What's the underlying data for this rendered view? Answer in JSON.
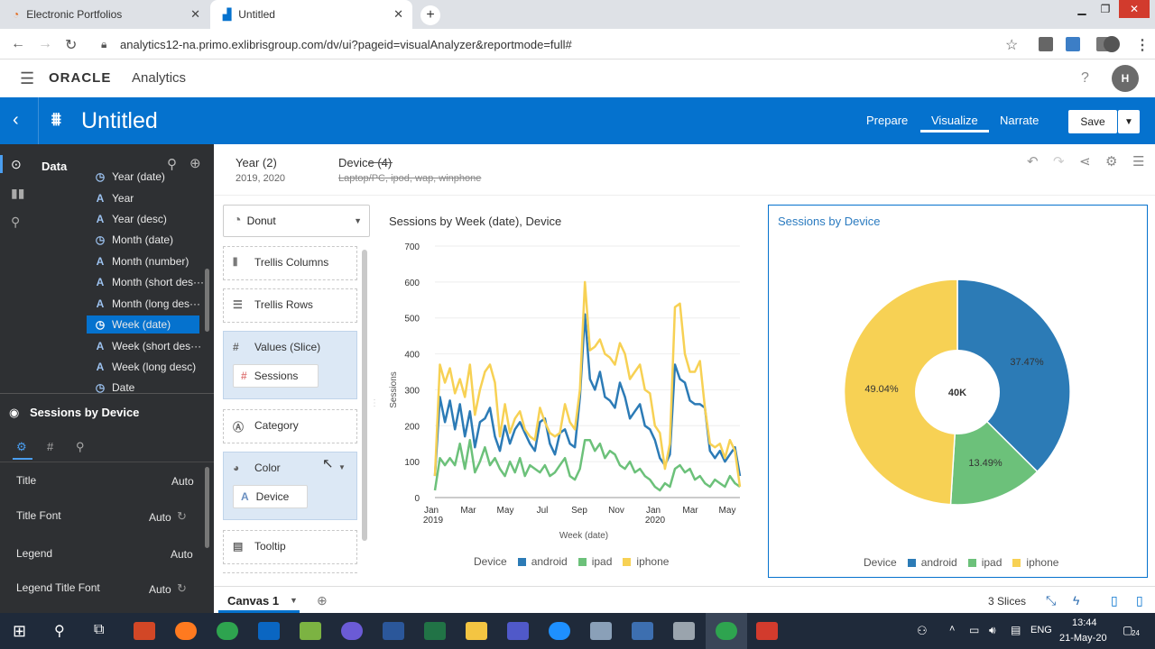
{
  "browser": {
    "tabs": [
      {
        "title": "Electronic Portfolios"
      },
      {
        "title": "Untitled"
      }
    ],
    "url": "analytics12-na.primo.exlibrisgroup.com/dv/ui?pageid=visualAnalyzer&reportmode=full#"
  },
  "app": {
    "brand": "ORACLE",
    "product": "Analytics",
    "help": "?",
    "avatar": "H"
  },
  "project": {
    "title": "Untitled",
    "nav": [
      "Prepare",
      "Visualize",
      "Narrate"
    ],
    "active_nav": "Visualize",
    "save_label": "Save"
  },
  "data_panel": {
    "label": "Data",
    "fields": [
      {
        "icon": "clock",
        "label": "Year (date)"
      },
      {
        "icon": "A",
        "label": "Year"
      },
      {
        "icon": "A",
        "label": "Year (desc)"
      },
      {
        "icon": "clock",
        "label": "Month (date)"
      },
      {
        "icon": "A",
        "label": "Month (number)"
      },
      {
        "icon": "A",
        "label": "Month (short des···"
      },
      {
        "icon": "A",
        "label": "Month (long des···"
      },
      {
        "icon": "clock",
        "label": "Week (date)"
      },
      {
        "icon": "A",
        "label": "Week (short des···"
      },
      {
        "icon": "A",
        "label": "Week (long desc)"
      },
      {
        "icon": "clock",
        "label": "Date"
      }
    ],
    "selected_field": "Week (date)"
  },
  "properties": {
    "title": "Sessions by Device",
    "rows": [
      {
        "label": "Title",
        "value": "Auto"
      },
      {
        "label": "Title Font",
        "value": "Auto"
      },
      {
        "label": "Legend",
        "value": "Auto"
      },
      {
        "label": "Legend Title Font",
        "value": "Auto"
      }
    ]
  },
  "filters": [
    {
      "name": "Year (2)",
      "values": "2019, 2020"
    },
    {
      "name": "Device (4)",
      "values": "Laptop/PC, ipod, wap, winphone"
    }
  ],
  "grammar": {
    "viz_type": "Donut",
    "slots": [
      "Trellis Columns",
      "Trellis Rows",
      "Values (Slice)",
      "Category",
      "Color",
      "Tooltip"
    ],
    "values_pill": "Sessions",
    "color_pill": "Device"
  },
  "colors": {
    "android": "#2c7bb6",
    "ipad": "#6cc17a",
    "iphone": "#f7d154",
    "accent": "#0572ce"
  },
  "line_chart": {
    "title": "Sessions by Week (date), Device",
    "ylabel": "Sessions",
    "xlabel": "Week (date)",
    "legend_title": "Device",
    "legend": [
      "android",
      "ipad",
      "iphone"
    ]
  },
  "donut_chart": {
    "title": "Sessions by Device",
    "center_label": "40K",
    "legend_title": "Device",
    "legend": [
      "android",
      "ipad",
      "iphone"
    ],
    "slice_labels": [
      "37.47%",
      "13.49%",
      "49.04%"
    ]
  },
  "chart_data": [
    {
      "type": "line",
      "title": "Sessions by Week (date), Device",
      "xlabel": "Week (date)",
      "ylabel": "Sessions",
      "ylim": [
        0,
        700
      ],
      "yticks": [
        0,
        100,
        200,
        300,
        400,
        500,
        600,
        700
      ],
      "xtick_labels": [
        "Jan 2019",
        "Mar",
        "May",
        "Jul",
        "Sep",
        "Nov",
        "Jan 2020",
        "Mar",
        "May"
      ],
      "series": [
        {
          "name": "android",
          "color": "#2c7bb6",
          "values": [
            60,
            280,
            210,
            270,
            190,
            260,
            170,
            240,
            140,
            210,
            220,
            250,
            170,
            130,
            200,
            150,
            190,
            210,
            180,
            150,
            130,
            210,
            220,
            150,
            120,
            180,
            190,
            150,
            140,
            280,
            510,
            330,
            300,
            350,
            280,
            270,
            250,
            320,
            280,
            220,
            240,
            260,
            200,
            190,
            160,
            110,
            90,
            120,
            370,
            330,
            320,
            270,
            260,
            260,
            250,
            130,
            110,
            130,
            100,
            120,
            140,
            60
          ]
        },
        {
          "name": "ipad",
          "color": "#6cc17a",
          "values": [
            20,
            110,
            90,
            110,
            90,
            150,
            80,
            160,
            70,
            100,
            140,
            90,
            110,
            80,
            60,
            100,
            70,
            110,
            60,
            90,
            80,
            70,
            90,
            60,
            70,
            90,
            110,
            60,
            50,
            80,
            160,
            160,
            130,
            150,
            110,
            130,
            120,
            90,
            80,
            100,
            70,
            80,
            60,
            50,
            30,
            20,
            40,
            30,
            80,
            90,
            70,
            80,
            50,
            60,
            40,
            30,
            50,
            40,
            30,
            60,
            40,
            30
          ]
        },
        {
          "name": "iphone",
          "color": "#f7d154",
          "values": [
            60,
            370,
            320,
            360,
            290,
            330,
            280,
            370,
            230,
            300,
            350,
            370,
            320,
            170,
            260,
            180,
            220,
            240,
            190,
            170,
            160,
            250,
            210,
            180,
            170,
            180,
            260,
            210,
            190,
            300,
            600,
            410,
            420,
            440,
            400,
            390,
            370,
            430,
            400,
            330,
            350,
            370,
            300,
            290,
            200,
            180,
            80,
            150,
            530,
            540,
            400,
            350,
            350,
            380,
            250,
            150,
            140,
            150,
            110,
            160,
            130,
            30
          ]
        }
      ]
    },
    {
      "type": "pie",
      "subtype": "donut",
      "title": "Sessions by Device",
      "center_label": "40K",
      "categories": [
        "android",
        "ipad",
        "iphone"
      ],
      "values": [
        37.47,
        13.49,
        49.04
      ],
      "colors": [
        "#2c7bb6",
        "#6cc17a",
        "#f7d154"
      ]
    }
  ],
  "canvas": {
    "tab_label": "Canvas 1",
    "status": "3 Slices"
  },
  "taskbar": {
    "lang": "ENG",
    "time": "13:44",
    "date": "21-May-20",
    "notif": "24"
  }
}
